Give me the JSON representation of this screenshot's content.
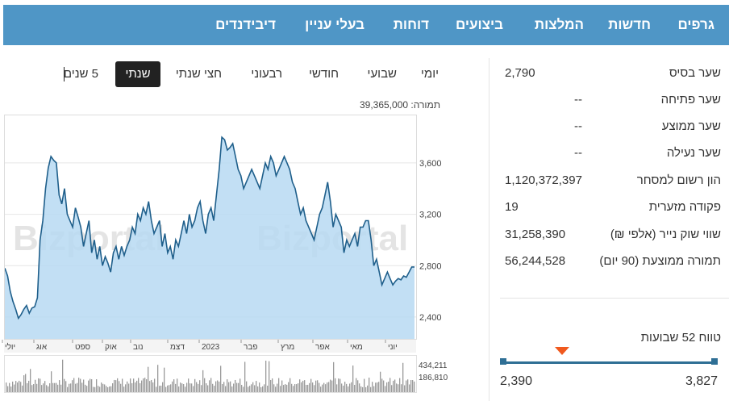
{
  "nav": {
    "items": [
      "גרפים",
      "חדשות",
      "המלצות",
      "ביצועים",
      "דוחות",
      "בעלי עניין",
      "דיבידנדים"
    ]
  },
  "periods": {
    "items": [
      "יומי",
      "שבועי",
      "חודשי",
      "רבעוני",
      "חצי שנתי",
      "שנתי",
      "5 שנים"
    ],
    "active": "שנתי"
  },
  "volume_label": "תמורה: 39,365,000",
  "stats": [
    {
      "label": "שער בסיס",
      "value": "2,790"
    },
    {
      "label": "שער פתיחה",
      "value": "--"
    },
    {
      "label": "שער ממוצע",
      "value": "--"
    },
    {
      "label": "שער נעילה",
      "value": "--"
    },
    {
      "label": "הון רשום למסחר",
      "value": "1,120,372,397"
    },
    {
      "label": "פקודה מזערית",
      "value": "19"
    },
    {
      "label": "שווי שוק נייר (אלפי ₪)",
      "value": "31,258,390"
    },
    {
      "label": "תמורה ממוצעת (90 יום)",
      "value": "56,244,528"
    }
  ],
  "range52": {
    "title": "טווח 52 שבועות",
    "min": "2,390",
    "max": "3,827",
    "current_fraction": 0.28
  },
  "watermark": "Bizportal",
  "colors": {
    "nav_bg": "#4f96c6",
    "area_fill": "#b7d9f2",
    "line": "#1f5f8b",
    "marker": "#f0591e",
    "volume": "#9a9a9a"
  },
  "chart_data": {
    "type": "area",
    "y_ticks": [
      "3,600",
      "3,200",
      "2,800",
      "2,400"
    ],
    "y_tick_values": [
      3600,
      3200,
      2800,
      2400
    ],
    "ylim": [
      2230,
      3970
    ],
    "x_labels": [
      "יולי",
      "אוג",
      "ספט",
      "אוק",
      "נוב",
      "דצמ",
      "2023",
      "פבר",
      "מרץ",
      "אפר",
      "מאי",
      "יוני"
    ],
    "x_label_pos": [
      3,
      42,
      90,
      127,
      162,
      208,
      247,
      299,
      345,
      388,
      431,
      478
    ],
    "values": [
      2780,
      2720,
      2600,
      2520,
      2460,
      2390,
      2420,
      2460,
      2490,
      2430,
      2470,
      2480,
      2550,
      3000,
      3150,
      3400,
      3560,
      3650,
      3620,
      3600,
      3350,
      3280,
      3400,
      3200,
      3150,
      3100,
      3250,
      3180,
      3100,
      2950,
      3050,
      3150,
      2900,
      3000,
      2850,
      2950,
      2800,
      2870,
      2820,
      2750,
      2900,
      2950,
      2850,
      2950,
      2880,
      2950,
      3000,
      3100,
      3050,
      3200,
      3150,
      3250,
      3200,
      3300,
      3150,
      3050,
      3100,
      3150,
      2950,
      3050,
      2900,
      2950,
      2850,
      3000,
      2950,
      3050,
      3150,
      3050,
      3200,
      3100,
      3150,
      3250,
      3300,
      3150,
      3050,
      3200,
      3250,
      3150,
      3350,
      3550,
      3800,
      3780,
      3700,
      3720,
      3750,
      3650,
      3550,
      3500,
      3400,
      3450,
      3500,
      3550,
      3500,
      3450,
      3400,
      3500,
      3600,
      3550,
      3650,
      3600,
      3500,
      3550,
      3600,
      3650,
      3600,
      3550,
      3450,
      3400,
      3300,
      3200,
      3250,
      3150,
      3100,
      3050,
      3000,
      3100,
      3200,
      3250,
      3350,
      3450,
      3300,
      3100,
      3200,
      3150,
      3100,
      2900,
      3000,
      2950,
      3000,
      3050,
      2950,
      3100,
      3100,
      3150,
      3150,
      3000,
      2800,
      2850,
      2750,
      2650,
      2700,
      2750,
      2700,
      2650,
      2680,
      2700,
      2690,
      2720,
      2710,
      2750,
      2790,
      2790
    ],
    "volume_ticks": [
      "434,211",
      "186,810"
    ]
  }
}
